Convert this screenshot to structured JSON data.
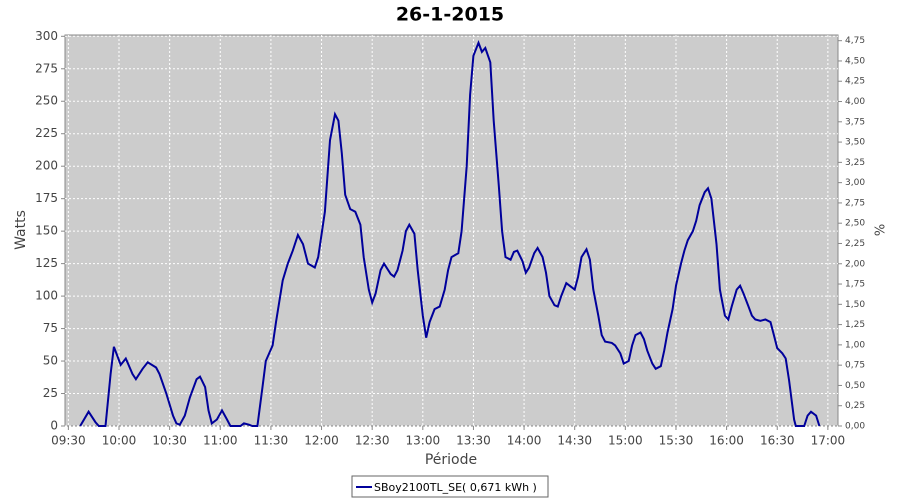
{
  "chart_data": {
    "type": "line",
    "title": "26-1-2015",
    "x_label": "Période",
    "y_label": "Watts",
    "y2_label": "%",
    "x": [
      "09:37",
      "09:42",
      "09:46",
      "09:48",
      "09:52",
      "09:55",
      "09:57",
      "10:01",
      "10:04",
      "10:08",
      "10:10",
      "10:14",
      "10:17",
      "10:22",
      "10:24",
      "10:28",
      "10:32",
      "10:34",
      "10:36",
      "10:39",
      "10:42",
      "10:46",
      "10:48",
      "10:51",
      "10:53",
      "10:55",
      "10:58",
      "11:01",
      "11:04",
      "11:06",
      "11:12",
      "11:14",
      "11:17",
      "11:19",
      "11:22",
      "11:25",
      "11:27",
      "11:31",
      "11:33",
      "11:37",
      "11:40",
      "11:43",
      "11:46",
      "11:49",
      "11:52",
      "11:56",
      "11:58",
      "12:02",
      "12:05",
      "12:08",
      "12:10",
      "12:12",
      "12:14",
      "12:17",
      "12:20",
      "12:23",
      "12:25",
      "12:28",
      "12:30",
      "12:32",
      "12:35",
      "12:37",
      "12:41",
      "12:43",
      "12:45",
      "12:48",
      "12:50",
      "12:52",
      "12:55",
      "12:57",
      "13:00",
      "13:02",
      "13:04",
      "13:07",
      "13:10",
      "13:13",
      "13:15",
      "13:17",
      "13:21",
      "13:23",
      "13:26",
      "13:28",
      "13:30",
      "13:33",
      "13:35",
      "13:37",
      "13:40",
      "13:42",
      "13:45",
      "13:47",
      "13:49",
      "13:52",
      "13:54",
      "13:56",
      "13:59",
      "14:01",
      "14:03",
      "14:06",
      "14:08",
      "14:11",
      "14:13",
      "14:15",
      "14:18",
      "14:20",
      "14:22",
      "14:25",
      "14:27",
      "14:30",
      "14:32",
      "14:34",
      "14:37",
      "14:39",
      "14:41",
      "14:44",
      "14:46",
      "14:48",
      "14:52",
      "14:54",
      "14:57",
      "14:59",
      "15:02",
      "15:04",
      "15:06",
      "15:09",
      "15:11",
      "15:13",
      "15:16",
      "15:18",
      "15:21",
      "15:23",
      "15:25",
      "15:28",
      "15:30",
      "15:33",
      "15:35",
      "15:37",
      "15:40",
      "15:42",
      "15:44",
      "15:47",
      "15:49",
      "15:51",
      "15:54",
      "15:56",
      "15:59",
      "16:01",
      "16:03",
      "16:06",
      "16:08",
      "16:10",
      "16:13",
      "16:15",
      "16:17",
      "16:20",
      "16:23",
      "16:26",
      "16:28",
      "16:30",
      "16:33",
      "16:35",
      "16:37",
      "16:40",
      "16:41",
      "16:46",
      "16:48",
      "16:50",
      "16:53",
      "16:55"
    ],
    "series": [
      {
        "name": "SBoy2100TL_SE( 0,671 kWh )",
        "color": "#00009b",
        "values": [
          0,
          11,
          3,
          0,
          0,
          40,
          61,
          47,
          52,
          40,
          36,
          44,
          49,
          45,
          40,
          25,
          8,
          2,
          1,
          8,
          22,
          36,
          38,
          30,
          12,
          2,
          5,
          12,
          5,
          0,
          0,
          2,
          1,
          0,
          0,
          30,
          50,
          62,
          80,
          112,
          125,
          135,
          147,
          140,
          125,
          122,
          130,
          165,
          220,
          240,
          235,
          210,
          178,
          167,
          165,
          155,
          130,
          105,
          95,
          102,
          120,
          125,
          117,
          115,
          120,
          135,
          150,
          155,
          148,
          120,
          85,
          68,
          80,
          90,
          92,
          105,
          120,
          130,
          133,
          150,
          200,
          255,
          285,
          295,
          288,
          291,
          280,
          235,
          185,
          150,
          130,
          128,
          134,
          135,
          127,
          118,
          122,
          133,
          137,
          130,
          118,
          100,
          93,
          92,
          100,
          110,
          108,
          105,
          115,
          130,
          136,
          128,
          105,
          85,
          70,
          65,
          64,
          62,
          56,
          48,
          50,
          62,
          70,
          72,
          67,
          58,
          48,
          44,
          46,
          58,
          72,
          90,
          108,
          125,
          135,
          143,
          150,
          158,
          170,
          180,
          183,
          175,
          140,
          105,
          85,
          82,
          92,
          105,
          108,
          102,
          92,
          85,
          82,
          81,
          82,
          80,
          70,
          60,
          56,
          52,
          35,
          5,
          0,
          0,
          8,
          11,
          8,
          0
        ]
      }
    ],
    "xlim": [
      "09:28",
      "17:06"
    ],
    "xticks": [
      "09:30",
      "10:00",
      "10:30",
      "11:00",
      "11:30",
      "12:00",
      "12:30",
      "13:00",
      "13:30",
      "14:00",
      "14:30",
      "15:00",
      "15:30",
      "16:00",
      "16:30",
      "17:00"
    ],
    "ylim": [
      0,
      301
    ],
    "yticks": [
      0,
      25,
      50,
      75,
      100,
      125,
      150,
      175,
      200,
      225,
      250,
      275,
      300
    ],
    "y2lim": [
      0,
      4.82
    ],
    "y2ticks": [
      {
        "value": 0,
        "label": "0,00"
      },
      {
        "value": 0.25,
        "label": "0,25"
      },
      {
        "value": 0.5,
        "label": "0,50"
      },
      {
        "value": 0.75,
        "label": "0,75"
      },
      {
        "value": 1,
        "label": "1,00"
      },
      {
        "value": 1.25,
        "label": "1,25"
      },
      {
        "value": 1.5,
        "label": "1,50"
      },
      {
        "value": 1.75,
        "label": "1,75"
      },
      {
        "value": 2,
        "label": "2,00"
      },
      {
        "value": 2.25,
        "label": "2,25"
      },
      {
        "value": 2.5,
        "label": "2,50"
      },
      {
        "value": 2.75,
        "label": "2,75"
      },
      {
        "value": 3,
        "label": "3,00"
      },
      {
        "value": 3.25,
        "label": "3,25"
      },
      {
        "value": 3.5,
        "label": "3,50"
      },
      {
        "value": 3.75,
        "label": "3,75"
      },
      {
        "value": 4,
        "label": "4,00"
      },
      {
        "value": 4.25,
        "label": "4,25"
      },
      {
        "value": 4.5,
        "label": "4,50"
      },
      {
        "value": 4.75,
        "label": "4,75"
      }
    ],
    "grid": true
  }
}
